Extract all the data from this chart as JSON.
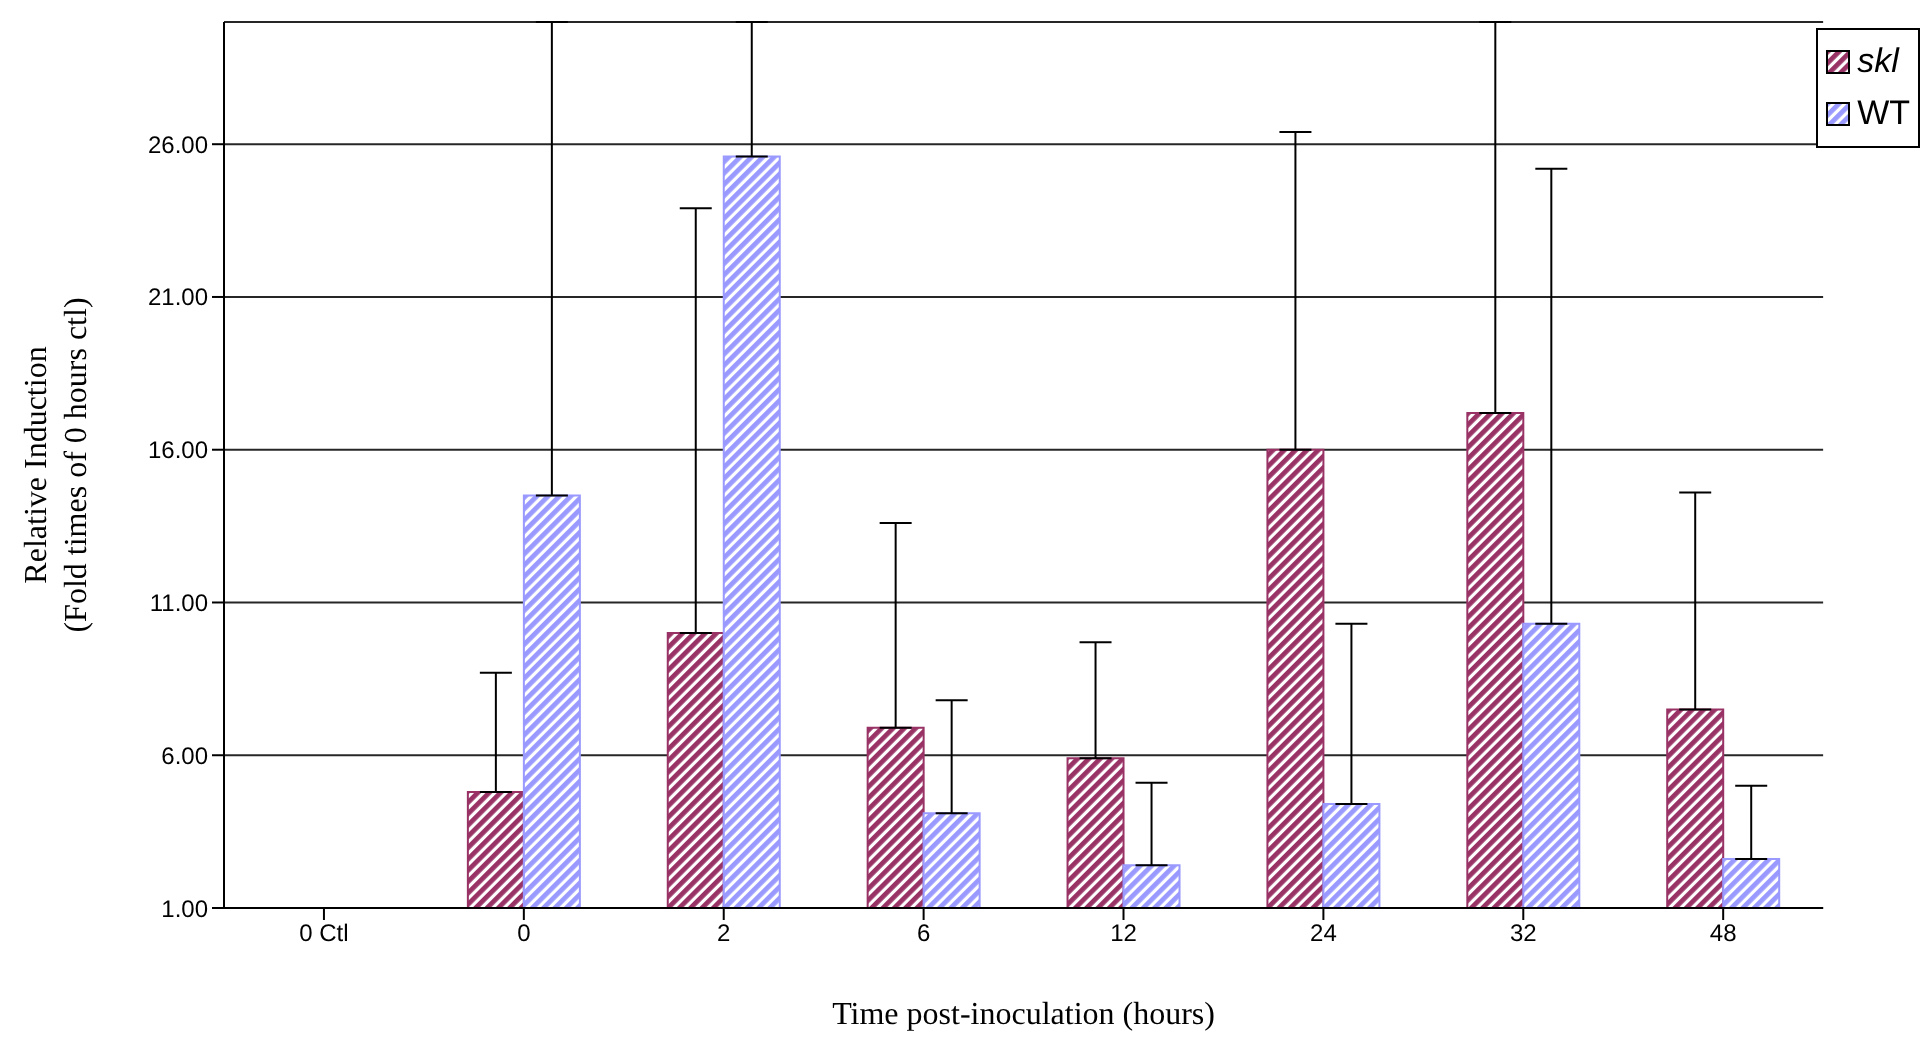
{
  "chart_data": {
    "type": "bar",
    "xlabel": "Time post-inoculation (hours)",
    "ylabel": "Relative Induction\n(Fold times of 0 hours ctl)",
    "categories": [
      "0 Ctl",
      "0",
      "2",
      "6",
      "12",
      "24",
      "32",
      "48"
    ],
    "series": [
      {
        "name": "skl",
        "color": "#993366",
        "values": [
          1,
          4.8,
          10.0,
          6.9,
          5.9,
          16.0,
          17.2,
          7.5
        ],
        "errors": [
          null,
          [
            4.8,
            8.7
          ],
          [
            10.0,
            23.9
          ],
          [
            6.9,
            13.6
          ],
          [
            5.9,
            9.7
          ],
          [
            16.0,
            26.4
          ],
          [
            17.2,
            30
          ],
          [
            7.5,
            14.6
          ]
        ]
      },
      {
        "name": "WT",
        "color": "#9999ff",
        "values": [
          1,
          14.5,
          25.6,
          4.1,
          2.4,
          4.4,
          10.3,
          2.6
        ],
        "errors": [
          null,
          [
            14.5,
            30
          ],
          [
            25.6,
            30
          ],
          [
            4.1,
            7.8
          ],
          [
            2.4,
            5.1
          ],
          [
            4.4,
            10.3
          ],
          [
            10.3,
            25.2
          ],
          [
            2.6,
            5.0
          ]
        ]
      }
    ],
    "ylim": [
      1,
      30
    ],
    "yticks": [
      {
        "value": 1,
        "label": "1.00"
      },
      {
        "value": 6,
        "label": "6.00"
      },
      {
        "value": 11,
        "label": "11.00"
      },
      {
        "value": 16,
        "label": "16.00"
      },
      {
        "value": 21,
        "label": "21.00"
      },
      {
        "value": 26,
        "label": "26.00"
      }
    ],
    "grid": "y",
    "legend": "top right"
  }
}
